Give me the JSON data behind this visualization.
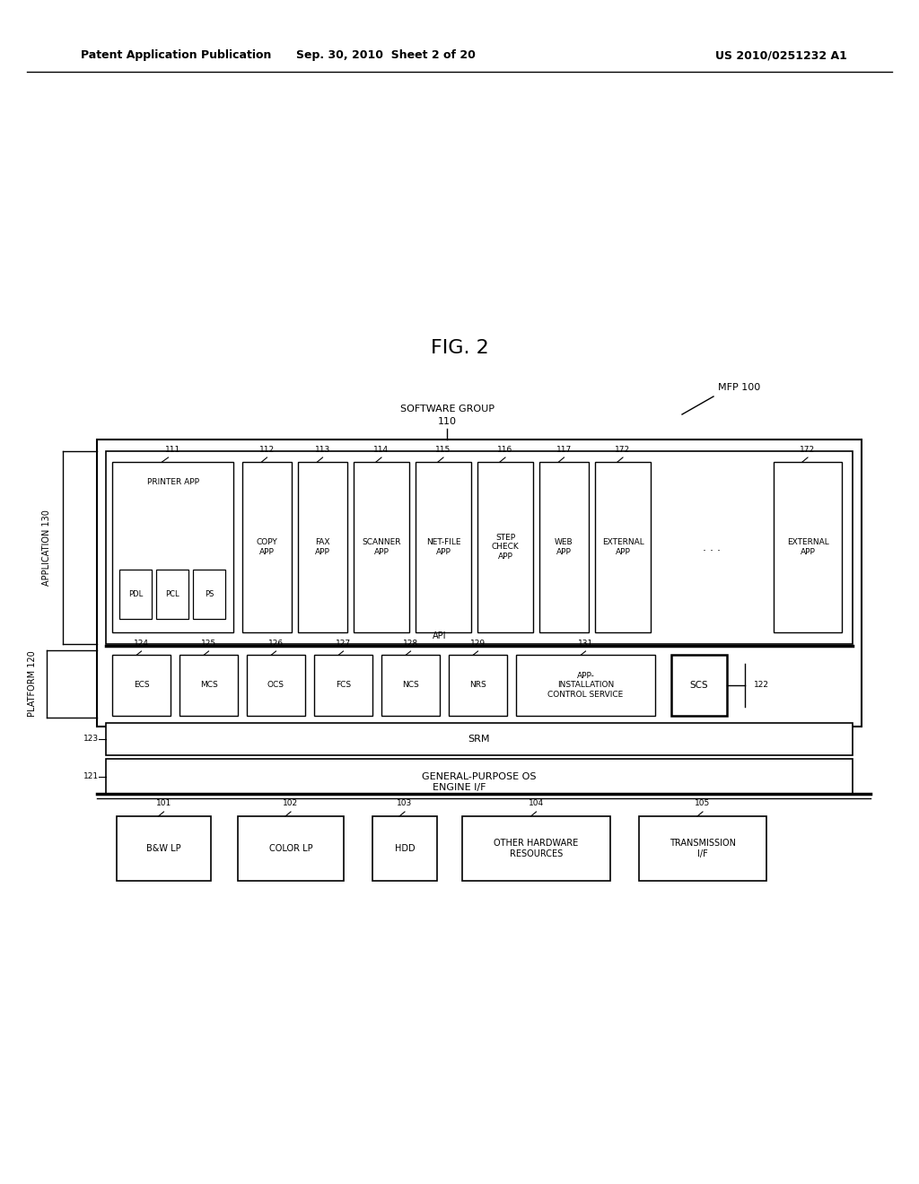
{
  "bg_color": "#ffffff",
  "title_header": "FIG. 2",
  "patent_header_left": "Patent Application Publication",
  "patent_header_mid": "Sep. 30, 2010  Sheet 2 of 20",
  "patent_header_right": "US 2010/0251232 A1",
  "mfp_label": "MFP 100",
  "application_label": "APPLICATION 130",
  "platform_label": "PLATFORM 120",
  "api_label": "API",
  "engine_if_label": "ENGINE I/F",
  "srm_label": "SRM",
  "srm_num": "123",
  "gpos_label": "GENERAL-PURPOSE OS",
  "gpos_num": "121",
  "scs_label": "SCS",
  "scs_num": "122"
}
